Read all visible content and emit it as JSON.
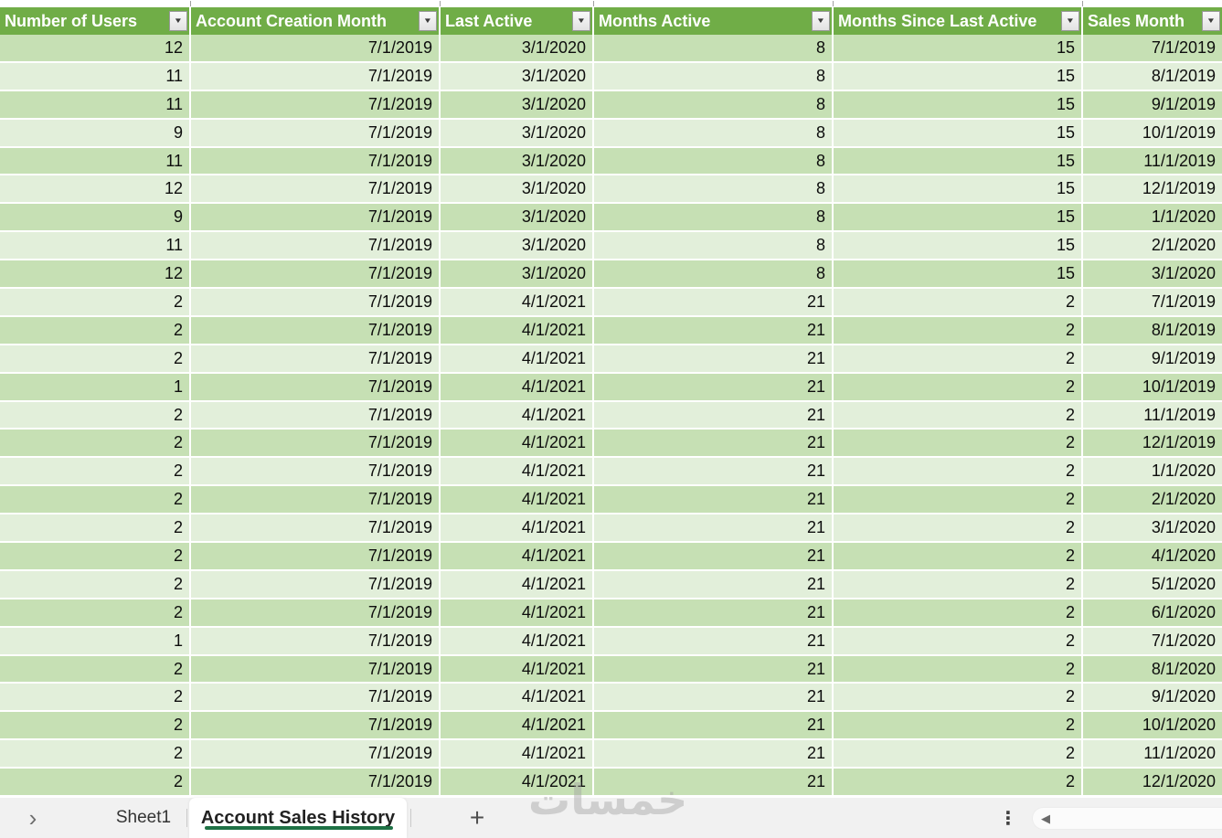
{
  "table": {
    "columns": [
      {
        "id": "number-of-users",
        "label": "Number of Users"
      },
      {
        "id": "account-creation-month",
        "label": "Account Creation Month"
      },
      {
        "id": "last-active",
        "label": "Last Active"
      },
      {
        "id": "months-active",
        "label": "Months Active"
      },
      {
        "id": "months-since-last-active",
        "label": "Months Since Last Active"
      },
      {
        "id": "sales-month",
        "label": "Sales Month"
      }
    ],
    "rows": [
      [
        "12",
        "7/1/2019",
        "3/1/2020",
        "8",
        "15",
        "7/1/2019"
      ],
      [
        "11",
        "7/1/2019",
        "3/1/2020",
        "8",
        "15",
        "8/1/2019"
      ],
      [
        "11",
        "7/1/2019",
        "3/1/2020",
        "8",
        "15",
        "9/1/2019"
      ],
      [
        "9",
        "7/1/2019",
        "3/1/2020",
        "8",
        "15",
        "10/1/2019"
      ],
      [
        "11",
        "7/1/2019",
        "3/1/2020",
        "8",
        "15",
        "11/1/2019"
      ],
      [
        "12",
        "7/1/2019",
        "3/1/2020",
        "8",
        "15",
        "12/1/2019"
      ],
      [
        "9",
        "7/1/2019",
        "3/1/2020",
        "8",
        "15",
        "1/1/2020"
      ],
      [
        "11",
        "7/1/2019",
        "3/1/2020",
        "8",
        "15",
        "2/1/2020"
      ],
      [
        "12",
        "7/1/2019",
        "3/1/2020",
        "8",
        "15",
        "3/1/2020"
      ],
      [
        "2",
        "7/1/2019",
        "4/1/2021",
        "21",
        "2",
        "7/1/2019"
      ],
      [
        "2",
        "7/1/2019",
        "4/1/2021",
        "21",
        "2",
        "8/1/2019"
      ],
      [
        "2",
        "7/1/2019",
        "4/1/2021",
        "21",
        "2",
        "9/1/2019"
      ],
      [
        "1",
        "7/1/2019",
        "4/1/2021",
        "21",
        "2",
        "10/1/2019"
      ],
      [
        "2",
        "7/1/2019",
        "4/1/2021",
        "21",
        "2",
        "11/1/2019"
      ],
      [
        "2",
        "7/1/2019",
        "4/1/2021",
        "21",
        "2",
        "12/1/2019"
      ],
      [
        "2",
        "7/1/2019",
        "4/1/2021",
        "21",
        "2",
        "1/1/2020"
      ],
      [
        "2",
        "7/1/2019",
        "4/1/2021",
        "21",
        "2",
        "2/1/2020"
      ],
      [
        "2",
        "7/1/2019",
        "4/1/2021",
        "21",
        "2",
        "3/1/2020"
      ],
      [
        "2",
        "7/1/2019",
        "4/1/2021",
        "21",
        "2",
        "4/1/2020"
      ],
      [
        "2",
        "7/1/2019",
        "4/1/2021",
        "21",
        "2",
        "5/1/2020"
      ],
      [
        "2",
        "7/1/2019",
        "4/1/2021",
        "21",
        "2",
        "6/1/2020"
      ],
      [
        "1",
        "7/1/2019",
        "4/1/2021",
        "21",
        "2",
        "7/1/2020"
      ],
      [
        "2",
        "7/1/2019",
        "4/1/2021",
        "21",
        "2",
        "8/1/2020"
      ],
      [
        "2",
        "7/1/2019",
        "4/1/2021",
        "21",
        "2",
        "9/1/2020"
      ],
      [
        "2",
        "7/1/2019",
        "4/1/2021",
        "21",
        "2",
        "10/1/2020"
      ],
      [
        "2",
        "7/1/2019",
        "4/1/2021",
        "21",
        "2",
        "11/1/2020"
      ],
      [
        "2",
        "7/1/2019",
        "4/1/2021",
        "21",
        "2",
        "12/1/2020"
      ]
    ]
  },
  "sheet_bar": {
    "tabs": [
      {
        "label": "Sheet1",
        "active": false
      },
      {
        "label": "Account Sales History",
        "active": true
      }
    ]
  },
  "watermark": "خمسات",
  "icons": {
    "filter_dropdown": "▼",
    "nav_next": "›",
    "add_sheet": "+",
    "more_vertical": "⋮",
    "scroll_left": "◀"
  },
  "colors": {
    "header_green": "#70AD47",
    "band_dark": "#C6E0B4",
    "band_light": "#E2EFDA",
    "underline_green": "#1E7145",
    "bar_bg": "#F1F1F1"
  }
}
